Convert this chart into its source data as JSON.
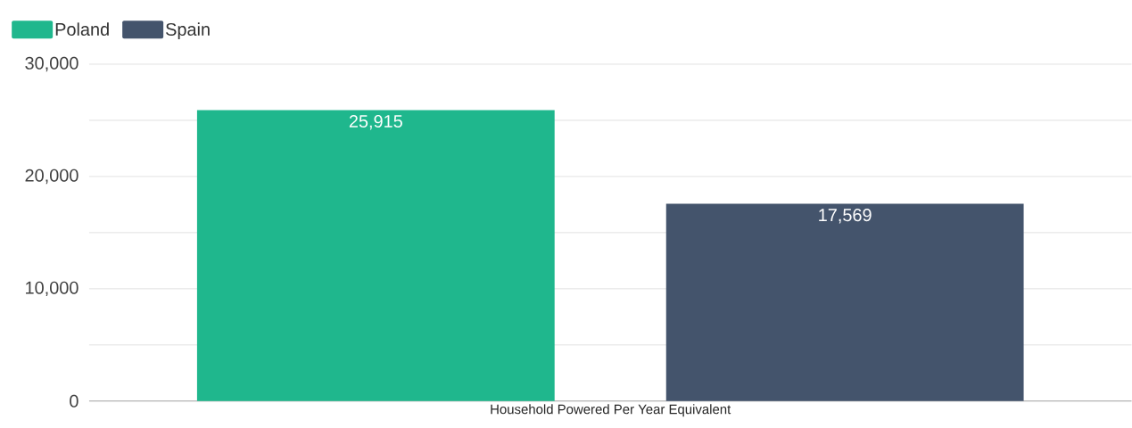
{
  "chart_data": {
    "type": "bar",
    "categories": [
      "Household Powered Per Year Equivalent"
    ],
    "series": [
      {
        "name": "Poland",
        "color": "#1fb78d",
        "values": [
          25915
        ],
        "value_labels": [
          "25,915"
        ]
      },
      {
        "name": "Spain",
        "color": "#44546c",
        "values": [
          17569
        ],
        "value_labels": [
          "17,569"
        ]
      }
    ],
    "ylim": [
      0,
      30000
    ],
    "yticks": [
      0,
      {
        "value": 5000,
        "label": null
      },
      {
        "value": 10000,
        "label": "10,000"
      },
      {
        "value": 15000,
        "label": null
      },
      {
        "value": 20000,
        "label": "20,000"
      },
      {
        "value": 25000,
        "label": null
      },
      {
        "value": 30000,
        "label": "30,000"
      }
    ],
    "grid": "y",
    "legend": "top left"
  }
}
